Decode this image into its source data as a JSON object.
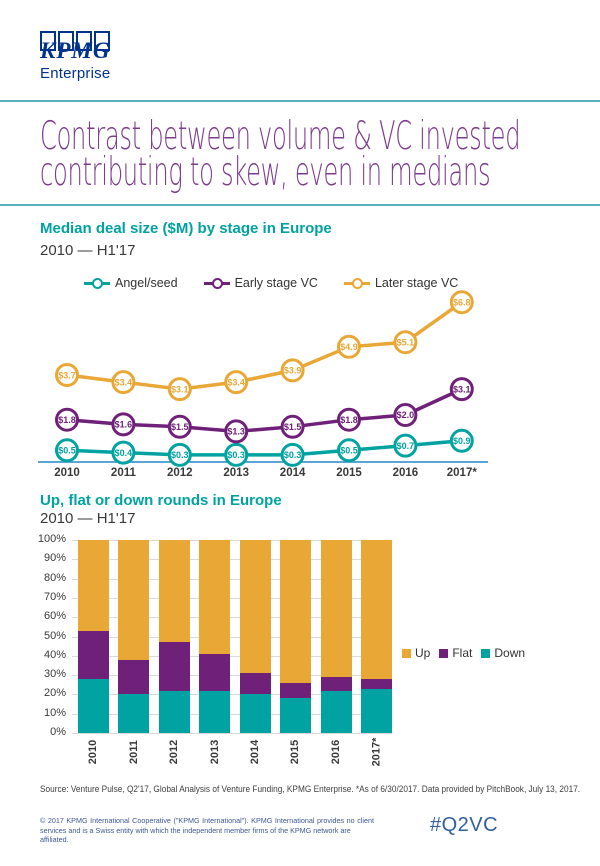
{
  "brand": {
    "logo_text": "KPMG",
    "logo_subtext": "Enterprise"
  },
  "page_title": {
    "line1": "Contrast between volume & VC invested",
    "line2": "contributing to skew, even in medians"
  },
  "colors": {
    "kpmg_blue": "#00338D",
    "title_purple": "#7D3C8C",
    "heading_teal": "#00A3A1",
    "rule_teal": "#58B2BB",
    "axis_blue": "#5BA4D8",
    "grid_gray": "#D9D9D9",
    "series_teal": "#00A3A1",
    "series_purple": "#6F2079",
    "series_yellow": "#E9A735",
    "hashtag_blue": "#31619F"
  },
  "chart_data": [
    {
      "type": "line",
      "title": "Median deal size ($M) by stage in Europe",
      "subtitle": "2010 — H1'17",
      "x": [
        "2010",
        "2011",
        "2012",
        "2013",
        "2014",
        "2015",
        "2016",
        "2017*"
      ],
      "value_prefix": "$",
      "ylim": [
        0,
        7.5
      ],
      "grid": false,
      "legend_position": "top",
      "series": [
        {
          "name": "Angel/seed",
          "color": "#00A3A1",
          "values": [
            0.5,
            0.4,
            0.3,
            0.3,
            0.3,
            0.5,
            0.7,
            0.9
          ]
        },
        {
          "name": "Early stage VC",
          "color": "#6F2079",
          "values": [
            1.8,
            1.6,
            1.5,
            1.3,
            1.5,
            1.8,
            2.0,
            3.1
          ]
        },
        {
          "name": "Later stage VC",
          "color": "#E9A735",
          "values": [
            3.7,
            3.4,
            3.1,
            3.4,
            3.9,
            4.9,
            5.1,
            6.8
          ]
        }
      ]
    },
    {
      "type": "bar",
      "stacked": true,
      "title": "Up, flat or down rounds in Europe",
      "subtitle": "2010 — H1'17",
      "categories": [
        "2010",
        "2011",
        "2012",
        "2013",
        "2014",
        "2015",
        "2016",
        "2017*"
      ],
      "ylabels": [
        "100%",
        "90%",
        "80%",
        "70%",
        "60%",
        "50%",
        "40%",
        "30%",
        "20%",
        "10%",
        "0%"
      ],
      "ylim": [
        0,
        100
      ],
      "grid": true,
      "legend_position": "right",
      "series": [
        {
          "name": "Up",
          "color": "#E9A735",
          "values": [
            47,
            62,
            53,
            59,
            69,
            74,
            71,
            72
          ]
        },
        {
          "name": "Flat",
          "color": "#6F2079",
          "values": [
            25,
            18,
            25,
            19,
            11,
            8,
            7,
            5
          ]
        },
        {
          "name": "Down",
          "color": "#00A3A1",
          "values": [
            28,
            20,
            22,
            22,
            20,
            18,
            22,
            23
          ]
        }
      ]
    }
  ],
  "footer": {
    "source": "Source: Venture Pulse, Q2'17, Global Analysis of Venture Funding, KPMG Enterprise. *As of 6/30/2017. Data provided by PitchBook, July 13, 2017.",
    "copyright_line1": "© 2017 KPMG International Cooperative (\"KPMG International\"). KPMG International provides no client",
    "copyright_line2": "services and is a Swiss entity with which the independent member firms of the KPMG network are affiliated.",
    "hashtag": "#Q2VC"
  }
}
